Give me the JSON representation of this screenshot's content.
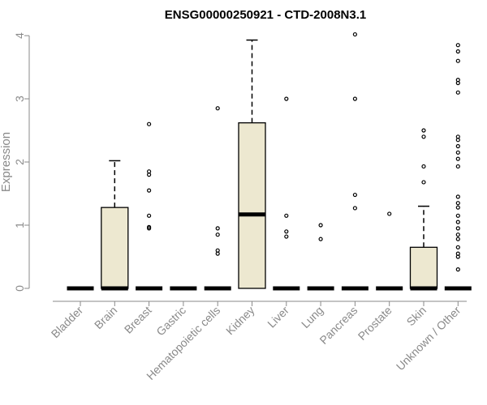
{
  "chart_data": {
    "type": "boxplot",
    "title": "ENSG00000250921 - CTD-2008N3.1",
    "xlabel": "",
    "ylabel": "Expression",
    "ylim": [
      0,
      4
    ],
    "yticks": [
      "0",
      "1",
      "2",
      "3",
      "4"
    ],
    "grid": false,
    "colors": {
      "box_fill": "#ede8d0",
      "stroke": "#000000",
      "axis": "#8a8a8a"
    },
    "categories": [
      "Bladder",
      "Brain",
      "Breast",
      "Gastric",
      "Hematopoietic cells",
      "Kidney",
      "Liver",
      "Lung",
      "Pancreas",
      "Prostate",
      "Skin",
      "Unknown / Other"
    ],
    "boxes": [
      {
        "category": "Bladder",
        "min": 0,
        "q1": 0,
        "median": 0,
        "q3": 0,
        "max": 0,
        "outliers": []
      },
      {
        "category": "Brain",
        "min": 0,
        "q1": 0,
        "median": 0,
        "q3": 1.28,
        "max": 2.02,
        "outliers": []
      },
      {
        "category": "Breast",
        "min": 0,
        "q1": 0,
        "median": 0,
        "q3": 0,
        "max": 0,
        "outliers": [
          0.95,
          0.97,
          1.15,
          1.55,
          1.8,
          1.85,
          2.6
        ]
      },
      {
        "category": "Gastric",
        "min": 0,
        "q1": 0,
        "median": 0,
        "q3": 0,
        "max": 0,
        "outliers": []
      },
      {
        "category": "Hematopoietic cells",
        "min": 0,
        "q1": 0,
        "median": 0,
        "q3": 0,
        "max": 0,
        "outliers": [
          0.55,
          0.6,
          0.85,
          0.95,
          2.85
        ]
      },
      {
        "category": "Kidney",
        "min": 0,
        "q1": 0,
        "median": 1.17,
        "q3": 2.62,
        "max": 3.93,
        "outliers": []
      },
      {
        "category": "Liver",
        "min": 0,
        "q1": 0,
        "median": 0,
        "q3": 0,
        "max": 0,
        "outliers": [
          0.82,
          0.9,
          1.15,
          3.0
        ]
      },
      {
        "category": "Lung",
        "min": 0,
        "q1": 0,
        "median": 0,
        "q3": 0,
        "max": 0,
        "outliers": [
          0.78,
          1.0
        ]
      },
      {
        "category": "Pancreas",
        "min": 0,
        "q1": 0,
        "median": 0,
        "q3": 0,
        "max": 0,
        "outliers": [
          1.27,
          1.48,
          3.0,
          4.02
        ]
      },
      {
        "category": "Prostate",
        "min": 0,
        "q1": 0,
        "median": 0,
        "q3": 0,
        "max": 0,
        "outliers": [
          1.18
        ]
      },
      {
        "category": "Skin",
        "min": 0,
        "q1": 0,
        "median": 0,
        "q3": 0.65,
        "max": 1.3,
        "outliers": [
          1.68,
          1.93,
          2.4,
          2.5
        ]
      },
      {
        "category": "Unknown / Other",
        "min": 0,
        "q1": 0,
        "median": 0,
        "q3": 0,
        "max": 0,
        "outliers": [
          0.3,
          0.5,
          0.55,
          0.65,
          0.78,
          0.85,
          0.95,
          1.05,
          1.15,
          1.28,
          1.35,
          1.45,
          1.93,
          2.05,
          2.15,
          2.25,
          2.35,
          2.4,
          3.1,
          3.25,
          3.3,
          3.6,
          3.75,
          3.85
        ]
      }
    ]
  }
}
